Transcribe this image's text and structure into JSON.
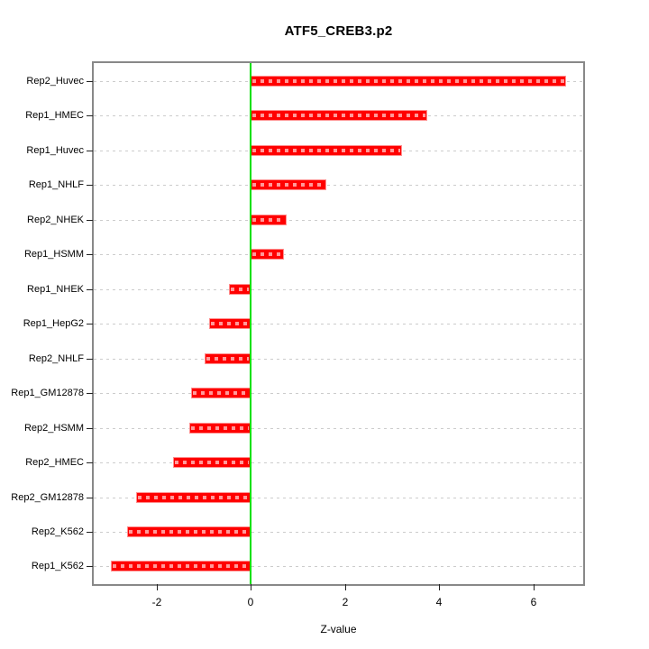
{
  "chart_data": {
    "type": "bar",
    "orientation": "horizontal",
    "title": "ATF5_CREB3.p2",
    "xlabel": "Z-value",
    "categories": [
      "Rep2_Huvec",
      "Rep1_HMEC",
      "Rep1_Huvec",
      "Rep1_NHLF",
      "Rep2_NHEK",
      "Rep1_HSMM",
      "Rep1_NHEK",
      "Rep1_HepG2",
      "Rep2_NHLF",
      "Rep1_GM12878",
      "Rep2_HSMM",
      "Rep2_HMEC",
      "Rep2_GM12878",
      "Rep2_K562",
      "Rep1_K562"
    ],
    "values": [
      6.7,
      3.75,
      3.21,
      1.61,
      0.76,
      0.7,
      -0.46,
      -0.88,
      -0.98,
      -1.26,
      -1.3,
      -1.65,
      -2.43,
      -2.62,
      -2.96
    ],
    "x_ticks": [
      -2,
      0,
      2,
      4,
      6
    ],
    "xlim": [
      -3.3,
      7.1
    ],
    "zero_reference_line": 0,
    "grid": "per-category dashed leader lines",
    "legend": "none",
    "colors": {
      "bar": "#FF0000",
      "bar_dash": "#FF9999",
      "zero_line": "#00E000",
      "leader_line": "#CCCCCC",
      "frame": "#888888",
      "background": "#FFFFFF",
      "text": "#000000"
    }
  }
}
